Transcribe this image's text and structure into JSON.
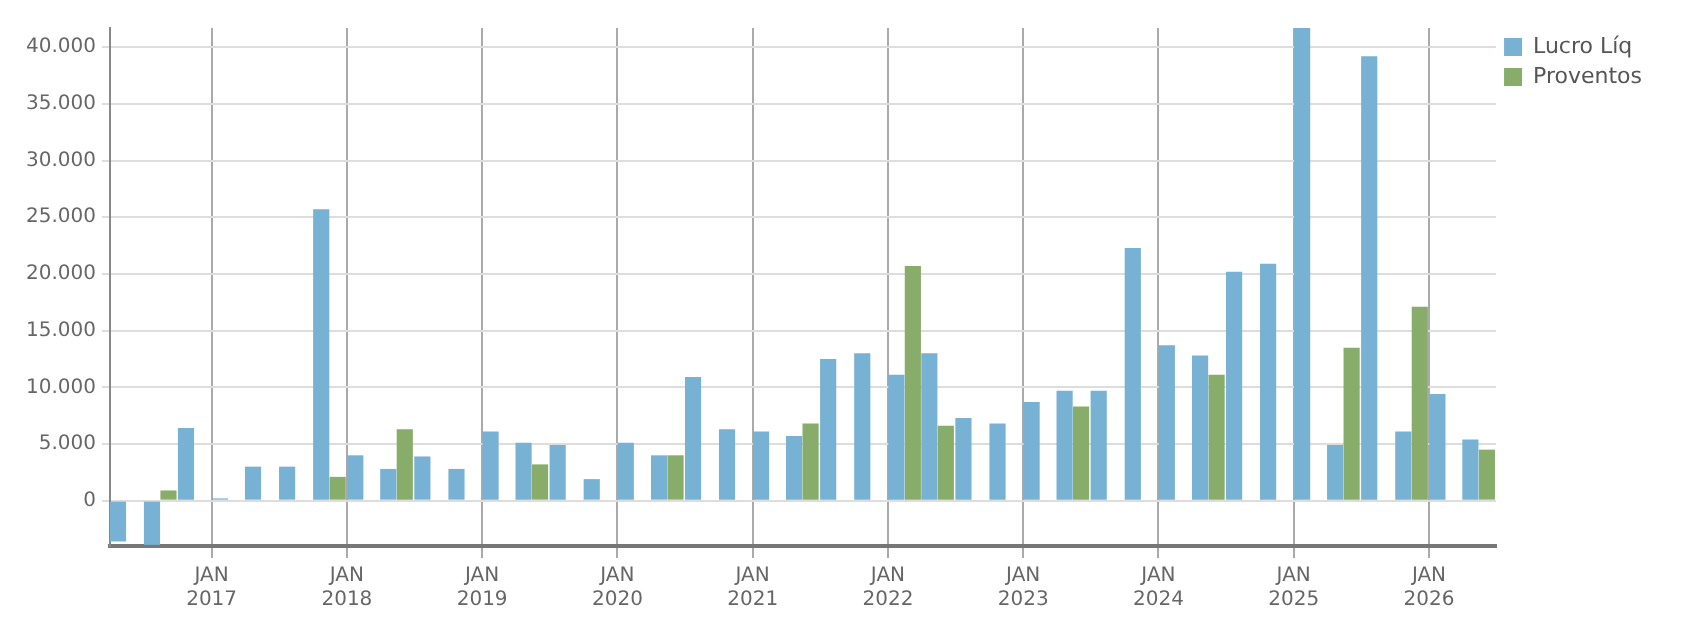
{
  "chart_data": {
    "type": "bar",
    "x": [
      "2016-05-15",
      "2016-08-15",
      "2016-11-15",
      "2017-02-15",
      "2017-05-15",
      "2017-08-15",
      "2017-11-15",
      "2018-02-15",
      "2018-05-15",
      "2018-08-15",
      "2018-11-15",
      "2019-02-15",
      "2019-05-15",
      "2019-08-15",
      "2019-11-15",
      "2020-02-15",
      "2020-05-15",
      "2020-08-15",
      "2020-11-15",
      "2021-02-15",
      "2021-05-15",
      "2021-08-15",
      "2021-11-15",
      "2022-02-15",
      "2022-05-15",
      "2022-08-15",
      "2022-11-15",
      "2023-02-15",
      "2023-05-15",
      "2023-08-15",
      "2023-11-15",
      "2024-02-15",
      "2024-05-15",
      "2024-08-15",
      "2024-11-15",
      "2025-02-15",
      "2025-05-15",
      "2025-08-15",
      "2025-11-15",
      "2026-02-15",
      "2026-05-15"
    ],
    "series": [
      {
        "name": "Lucro Líq",
        "color": "#77b1d3",
        "values": [
          -3600,
          -3900,
          6400,
          200,
          3000,
          3000,
          25700,
          4000,
          2800,
          3900,
          2800,
          6100,
          5100,
          4900,
          1900,
          5100,
          4000,
          10900,
          6300,
          6100,
          5700,
          12500,
          13000,
          11100,
          13000,
          7300,
          6800,
          8700,
          9700,
          9700,
          22300,
          13700,
          12800,
          20200,
          20900,
          41700,
          4900,
          39200,
          6100,
          9400,
          5400
        ]
      },
      {
        "name": "Proventos",
        "color": "#88ad6a",
        "values": [
          0,
          900,
          0,
          0,
          0,
          0,
          2100,
          0,
          6300,
          0,
          0,
          0,
          3200,
          0,
          0,
          0,
          4000,
          0,
          0,
          0,
          6800,
          0,
          0,
          20700,
          6600,
          0,
          0,
          0,
          8300,
          0,
          0,
          0,
          11100,
          0,
          0,
          0,
          13500,
          0,
          17100,
          0,
          4500
        ]
      }
    ],
    "xlim": [
      "2016-04-01",
      "2026-07-01"
    ],
    "xticks": [
      {
        "value": "2017-01-01",
        "label": "JAN 2017"
      },
      {
        "value": "2018-01-01",
        "label": "JAN 2018"
      },
      {
        "value": "2019-01-01",
        "label": "JAN 2019"
      },
      {
        "value": "2020-01-01",
        "label": "JAN 2020"
      },
      {
        "value": "2021-01-01",
        "label": "JAN 2021"
      },
      {
        "value": "2022-01-01",
        "label": "JAN 2022"
      },
      {
        "value": "2023-01-01",
        "label": "JAN 2023"
      },
      {
        "value": "2024-01-01",
        "label": "JAN 2024"
      },
      {
        "value": "2025-01-01",
        "label": "JAN 2025"
      },
      {
        "value": "2026-01-01",
        "label": "JAN 2026"
      }
    ],
    "ylim": [
      -4000,
      41700
    ],
    "yticks": [
      {
        "value": 0,
        "label": "0"
      },
      {
        "value": 5000,
        "label": "5.000"
      },
      {
        "value": 10000,
        "label": "10.000"
      },
      {
        "value": 15000,
        "label": "15.000"
      },
      {
        "value": 20000,
        "label": "20.000"
      },
      {
        "value": 25000,
        "label": "25.000"
      },
      {
        "value": 30000,
        "label": "30.000"
      },
      {
        "value": 35000,
        "label": "35.000"
      },
      {
        "value": 40000,
        "label": "40.000"
      }
    ],
    "grid": true,
    "legend": "top right"
  }
}
